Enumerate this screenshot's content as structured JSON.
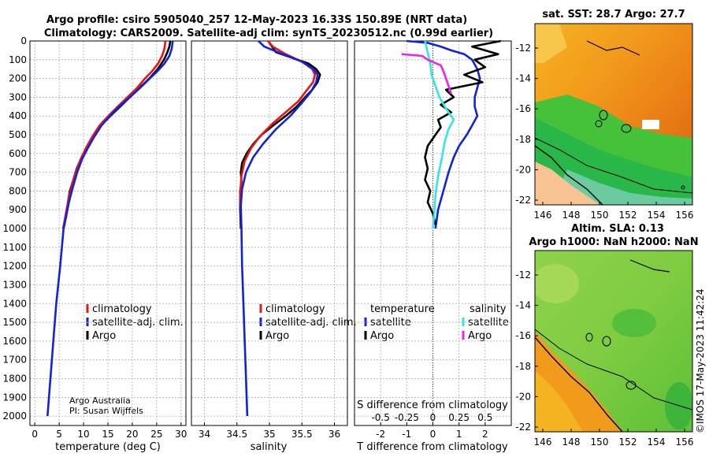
{
  "title": {
    "line1": "Argo profile: csiro 5905040_257 12-May-2023 16.33S 150.89E (NRT data)",
    "line2": "Climatology: CARS2009. Satellite-adj clim: synTS_20230512.nc (0.99d earlier)"
  },
  "colors": {
    "climatology": "#ee1111",
    "satellite": "#1122dd",
    "argo": "#000000",
    "sat_salinity": "#33e6e6",
    "argo_salinity": "#ee22ee"
  },
  "chart_data": [
    {
      "type": "line",
      "name": "temperature",
      "xlabel": "temperature (deg C)",
      "xlim": [
        -1,
        31
      ],
      "xticks": [
        "0",
        "5",
        "10",
        "15",
        "20",
        "25",
        "30"
      ],
      "ylim": [
        0,
        2050
      ],
      "yticks": [
        "0",
        "100",
        "200",
        "300",
        "400",
        "500",
        "600",
        "700",
        "800",
        "900",
        "1000",
        "1100",
        "1200",
        "1300",
        "1400",
        "1500",
        "1600",
        "1700",
        "1800",
        "1900",
        "2000"
      ],
      "legend": [
        "climatology",
        "satellite-adj. clim.",
        "Argo"
      ],
      "annotation": [
        "Argo Australia",
        "PI: Susan Wijffels"
      ],
      "series": [
        {
          "name": "Argo",
          "color": "#000000",
          "points": [
            [
              27.8,
              0
            ],
            [
              27.6,
              30
            ],
            [
              27.2,
              60
            ],
            [
              26.5,
              100
            ],
            [
              25.2,
              150
            ],
            [
              23.5,
              200
            ],
            [
              21.5,
              250
            ],
            [
              19.5,
              300
            ],
            [
              17.5,
              350
            ],
            [
              15.5,
              400
            ],
            [
              13.6,
              450
            ],
            [
              12.2,
              500
            ],
            [
              10.8,
              560
            ],
            [
              9.6,
              620
            ],
            [
              8.6,
              680
            ],
            [
              7.9,
              740
            ],
            [
              7.2,
              800
            ],
            [
              6.8,
              860
            ],
            [
              6.4,
              920
            ],
            [
              6.1,
              980
            ],
            [
              5.8,
              1000
            ]
          ]
        },
        {
          "name": "climatology",
          "color": "#ee1111",
          "points": [
            [
              26.8,
              0
            ],
            [
              26.6,
              40
            ],
            [
              26.1,
              80
            ],
            [
              25.3,
              120
            ],
            [
              24.1,
              160
            ],
            [
              22.6,
              200
            ],
            [
              21.0,
              250
            ],
            [
              19.0,
              300
            ],
            [
              17.0,
              350
            ],
            [
              15.1,
              400
            ],
            [
              13.3,
              450
            ],
            [
              11.8,
              510
            ],
            [
              10.5,
              570
            ],
            [
              9.4,
              630
            ],
            [
              8.4,
              700
            ],
            [
              7.6,
              770
            ],
            [
              6.9,
              850
            ],
            [
              6.3,
              930
            ],
            [
              5.8,
              1000
            ]
          ]
        },
        {
          "name": "satellite-adj. clim.",
          "color": "#1122dd",
          "points": [
            [
              28.3,
              0
            ],
            [
              28.1,
              40
            ],
            [
              27.6,
              80
            ],
            [
              26.6,
              120
            ],
            [
              25.2,
              160
            ],
            [
              23.6,
              200
            ],
            [
              21.6,
              250
            ],
            [
              19.5,
              300
            ],
            [
              17.3,
              350
            ],
            [
              15.4,
              400
            ],
            [
              13.7,
              450
            ],
            [
              12.2,
              510
            ],
            [
              10.9,
              570
            ],
            [
              9.7,
              630
            ],
            [
              8.7,
              700
            ],
            [
              7.8,
              780
            ],
            [
              7.0,
              860
            ],
            [
              6.4,
              940
            ],
            [
              5.9,
              1000
            ],
            [
              5.2,
              1200
            ],
            [
              4.4,
              1400
            ],
            [
              3.8,
              1600
            ],
            [
              3.2,
              1800
            ],
            [
              2.6,
              2000
            ]
          ]
        }
      ]
    },
    {
      "type": "line",
      "name": "salinity",
      "xlabel": "salinity",
      "xlim": [
        33.8,
        36.2
      ],
      "xticks": [
        "34",
        "34.5",
        "35",
        "35.5",
        "36"
      ],
      "ylim": [
        0,
        2050
      ],
      "legend": [
        "climatology",
        "satellite-adj. clim.",
        "Argo"
      ],
      "series": [
        {
          "name": "Argo",
          "color": "#000000",
          "points": [
            [
              34.98,
              0
            ],
            [
              35.02,
              20
            ],
            [
              35.1,
              60
            ],
            [
              35.35,
              90
            ],
            [
              35.6,
              120
            ],
            [
              35.72,
              150
            ],
            [
              35.78,
              180
            ],
            [
              35.74,
              220
            ],
            [
              35.66,
              260
            ],
            [
              35.55,
              300
            ],
            [
              35.42,
              350
            ],
            [
              35.25,
              400
            ],
            [
              35.06,
              450
            ],
            [
              34.88,
              500
            ],
            [
              34.75,
              550
            ],
            [
              34.65,
              600
            ],
            [
              34.58,
              650
            ],
            [
              34.56,
              700
            ],
            [
              34.57,
              750
            ],
            [
              34.55,
              800
            ],
            [
              34.55,
              900
            ],
            [
              34.56,
              1000
            ]
          ]
        },
        {
          "name": "climatology",
          "color": "#ee1111",
          "points": [
            [
              34.98,
              0
            ],
            [
              35.05,
              30
            ],
            [
              35.25,
              70
            ],
            [
              35.5,
              110
            ],
            [
              35.66,
              150
            ],
            [
              35.7,
              180
            ],
            [
              35.67,
              220
            ],
            [
              35.58,
              260
            ],
            [
              35.45,
              320
            ],
            [
              35.25,
              380
            ],
            [
              35.05,
              440
            ],
            [
              34.85,
              510
            ],
            [
              34.72,
              570
            ],
            [
              34.62,
              640
            ],
            [
              34.57,
              720
            ],
            [
              34.55,
              820
            ],
            [
              34.56,
              920
            ],
            [
              34.57,
              1000
            ]
          ]
        },
        {
          "name": "satellite-adj. clim.",
          "color": "#1122dd",
          "points": [
            [
              34.83,
              0
            ],
            [
              34.92,
              30
            ],
            [
              35.2,
              70
            ],
            [
              35.5,
              110
            ],
            [
              35.68,
              150
            ],
            [
              35.74,
              180
            ],
            [
              35.72,
              220
            ],
            [
              35.64,
              270
            ],
            [
              35.5,
              330
            ],
            [
              35.32,
              400
            ],
            [
              35.1,
              470
            ],
            [
              34.9,
              550
            ],
            [
              34.75,
              620
            ],
            [
              34.64,
              700
            ],
            [
              34.58,
              790
            ],
            [
              34.56,
              880
            ],
            [
              34.57,
              1000
            ],
            [
              34.58,
              1200
            ],
            [
              34.6,
              1400
            ],
            [
              34.62,
              1600
            ],
            [
              34.64,
              1800
            ],
            [
              34.66,
              2000
            ]
          ]
        }
      ]
    },
    {
      "type": "line",
      "name": "difference",
      "xlabel": "T difference from climatology",
      "xlabel_top": "S difference from climatology",
      "xlim": [
        -3,
        3
      ],
      "xticks": [
        "-2",
        "-1",
        "0",
        "1",
        "2"
      ],
      "xticks_top": [
        "-0.5",
        "-0.25",
        "0",
        "0.25",
        "0.5"
      ],
      "ylim": [
        0,
        2050
      ],
      "legend_left_title": "temperature",
      "legend_right_title": "salinity",
      "legend_left": [
        "satellite",
        "Argo"
      ],
      "legend_right": [
        "satellite",
        "Argo"
      ],
      "series": [
        {
          "name": "T satellite",
          "color": "#1122dd",
          "points": [
            [
              -1.0,
              0
            ],
            [
              -0.2,
              10
            ],
            [
              0.3,
              30
            ],
            [
              0.7,
              50
            ],
            [
              1.2,
              70
            ],
            [
              1.5,
              100
            ],
            [
              1.7,
              150
            ],
            [
              1.8,
              200
            ],
            [
              1.7,
              250
            ],
            [
              1.6,
              300
            ],
            [
              1.6,
              350
            ],
            [
              1.7,
              400
            ],
            [
              1.5,
              450
            ],
            [
              1.3,
              500
            ],
            [
              1.0,
              560
            ],
            [
              0.8,
              620
            ],
            [
              0.6,
              700
            ],
            [
              0.4,
              800
            ],
            [
              0.2,
              900
            ],
            [
              0.1,
              1000
            ]
          ]
        },
        {
          "name": "T Argo",
          "color": "#000000",
          "points": [
            [
              2.6,
              0
            ],
            [
              1.5,
              30
            ],
            [
              2.5,
              70
            ],
            [
              1.6,
              100
            ],
            [
              2.0,
              140
            ],
            [
              1.2,
              180
            ],
            [
              1.9,
              220
            ],
            [
              0.5,
              260
            ],
            [
              0.8,
              300
            ],
            [
              0.3,
              340
            ],
            [
              0.7,
              380
            ],
            [
              0.2,
              420
            ],
            [
              0.3,
              460
            ],
            [
              0.1,
              500
            ],
            [
              -0.2,
              560
            ],
            [
              -0.3,
              620
            ],
            [
              -0.2,
              680
            ],
            [
              -0.3,
              740
            ],
            [
              -0.1,
              800
            ],
            [
              -0.2,
              860
            ],
            [
              0.0,
              920
            ],
            [
              0.1,
              980
            ]
          ]
        },
        {
          "name": "S satellite",
          "color": "#33e6e6",
          "points": [
            [
              -0.3,
              0
            ],
            [
              -0.2,
              60
            ],
            [
              -0.1,
              120
            ],
            [
              -0.05,
              180
            ],
            [
              0.1,
              240
            ],
            [
              0.25,
              300
            ],
            [
              0.5,
              360
            ],
            [
              0.8,
              420
            ],
            [
              0.6,
              470
            ],
            [
              0.45,
              540
            ],
            [
              0.35,
              620
            ],
            [
              0.2,
              720
            ],
            [
              0.1,
              820
            ],
            [
              0.05,
              920
            ],
            [
              0.0,
              1000
            ]
          ]
        },
        {
          "name": "S Argo",
          "color": "#ee22ee",
          "points": [
            [
              -1.2,
              70
            ],
            [
              -0.4,
              80
            ],
            [
              -0.2,
              100
            ],
            [
              0.3,
              130
            ],
            [
              0.4,
              160
            ],
            [
              0.5,
              200
            ],
            [
              0.6,
              240
            ],
            [
              0.7,
              280
            ]
          ]
        }
      ]
    }
  ],
  "maps": {
    "sst": {
      "title": "sat. SST: 28.7 Argo: 27.7",
      "xticks": [
        "146",
        "148",
        "150",
        "152",
        "154",
        "156"
      ],
      "yticks": [
        "-12",
        "-14",
        "-16",
        "-18",
        "-20",
        "-22"
      ]
    },
    "sla": {
      "title1": "Altim. SLA: 0.13",
      "title2": "Argo h1000: NaN h2000: NaN",
      "xticks": [
        "146",
        "148",
        "150",
        "152",
        "154",
        "156"
      ],
      "yticks": [
        "-12",
        "-14",
        "-16",
        "-18",
        "-20",
        "-22"
      ]
    }
  },
  "credit": "©IMOS 17-May-2023 11:42:24"
}
